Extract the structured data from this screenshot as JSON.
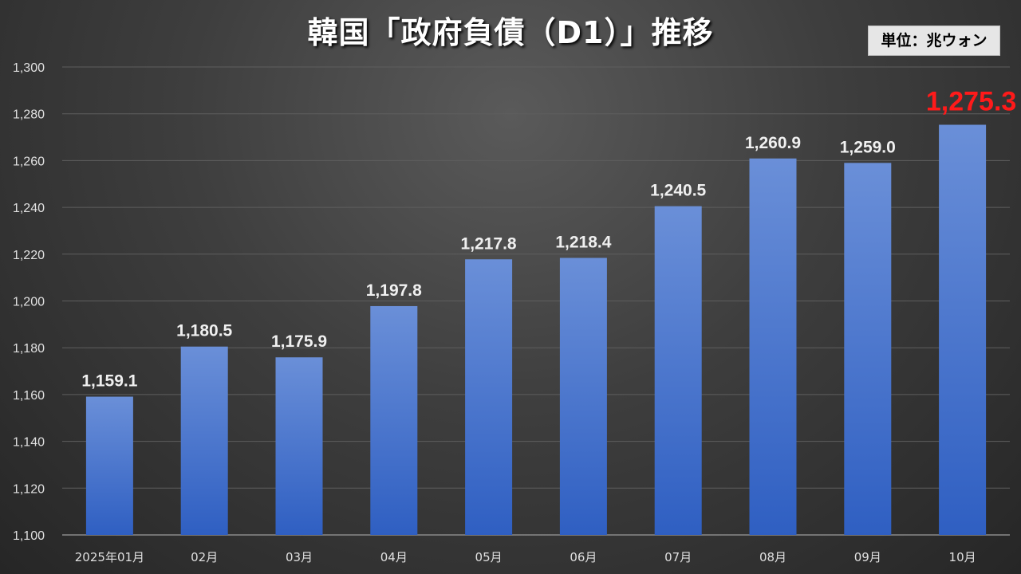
{
  "title": "韓国「政府負債（D1）」推移",
  "unit_label": "単位：兆ウォン",
  "colors": {
    "bar_top": "#6a8fd8",
    "bar_bottom": "#2f5fc2",
    "highlight_label": "#ff1a1a",
    "gridline": "#5e5e5e"
  },
  "chart_data": {
    "type": "bar",
    "categories": [
      "2025年01月",
      "02月",
      "03月",
      "04月",
      "05月",
      "06月",
      "07月",
      "08月",
      "09月",
      "10月"
    ],
    "values": [
      1159.1,
      1180.5,
      1175.9,
      1197.8,
      1217.8,
      1218.4,
      1240.5,
      1260.9,
      1259.0,
      1275.3
    ],
    "value_labels": [
      "1,159.1",
      "1,180.5",
      "1,175.9",
      "1,197.8",
      "1,217.8",
      "1,218.4",
      "1,240.5",
      "1,260.9",
      "1,259.0",
      "1,275.3"
    ],
    "highlight_index": 9,
    "ylim": [
      1100,
      1300
    ],
    "yticks": [
      1100,
      1120,
      1140,
      1160,
      1180,
      1200,
      1220,
      1240,
      1260,
      1280,
      1300
    ],
    "ytick_labels": [
      "1,100",
      "1,120",
      "1,140",
      "1,160",
      "1,180",
      "1,200",
      "1,220",
      "1,240",
      "1,260",
      "1,280",
      "1,300"
    ],
    "grid": true,
    "xlabel": "",
    "ylabel": ""
  }
}
